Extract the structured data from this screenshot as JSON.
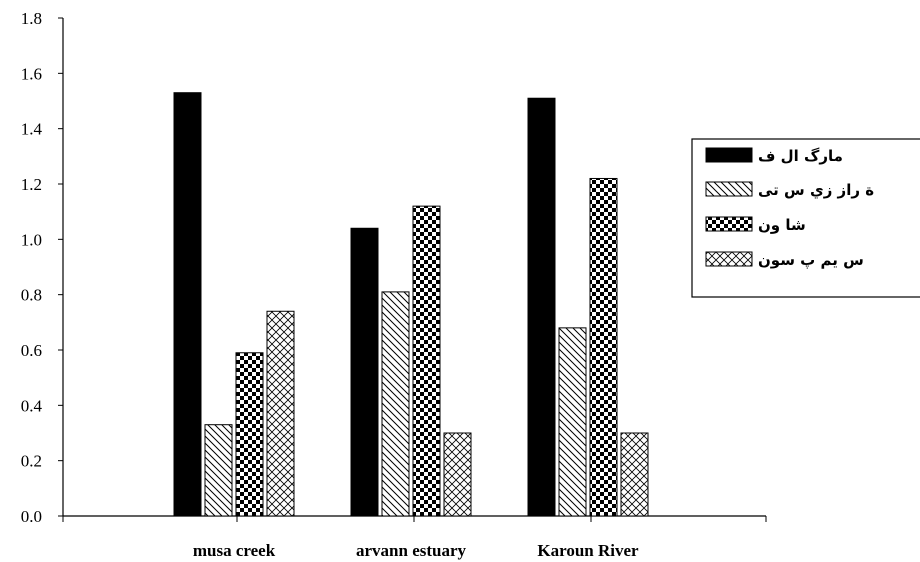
{
  "chart_data": {
    "type": "bar",
    "categories": [
      "musa creek",
      "arvann estuary",
      "Karoun River"
    ],
    "series": [
      {
        "name": "مارگ ال ف",
        "values": [
          1.53,
          1.04,
          1.51
        ],
        "pattern": "solid-black"
      },
      {
        "name": "ة راز زي  س تی",
        "values": [
          0.33,
          0.81,
          0.68
        ],
        "pattern": "diagonal-hatch"
      },
      {
        "name": "شا ون",
        "values": [
          0.59,
          1.12,
          1.22
        ],
        "pattern": "checkerboard"
      },
      {
        "name": "س يم پ سون",
        "values": [
          0.74,
          0.3,
          0.3
        ],
        "pattern": "cross-hatch"
      }
    ],
    "yticks": [
      "0.0",
      "0.2",
      "0.4",
      "0.6",
      "0.8",
      "1.0",
      "1.2",
      "1.4",
      "1.6",
      "1.8"
    ],
    "ylim": [
      0,
      1.8
    ],
    "title": "",
    "xlabel": "",
    "ylabel": "",
    "grid": false,
    "legend_position": "right"
  }
}
